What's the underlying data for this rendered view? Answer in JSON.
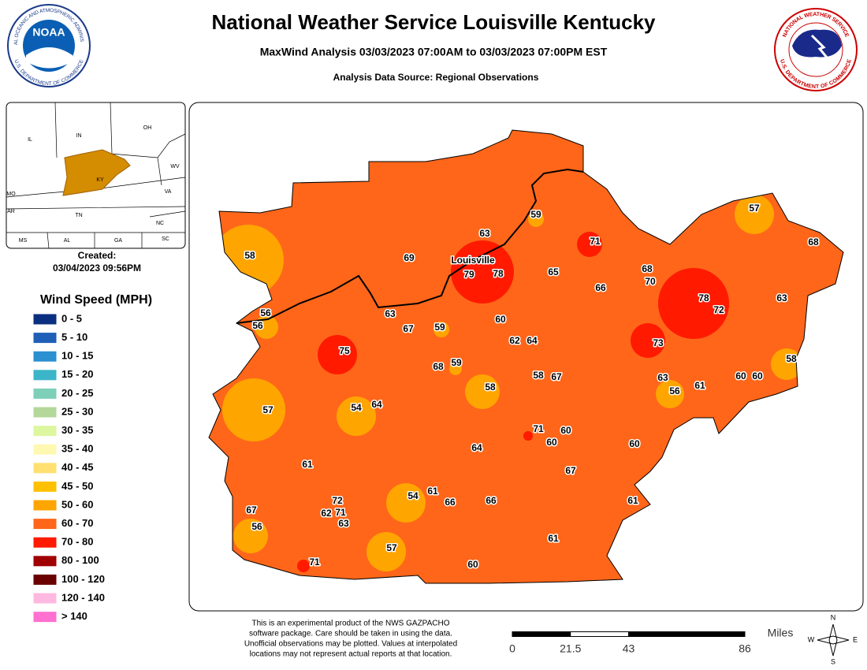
{
  "header": {
    "title": "National Weather Service Louisville Kentucky",
    "subtitle": "MaxWind Analysis 03/03/2023 07:00AM to 03/03/2023 07:00PM EST",
    "source": "Analysis Data Source: Regional Observations"
  },
  "logos": {
    "noaa_ring_top": "NATIONAL OCEANIC AND ATMOSPHERIC ADMINISTRATION",
    "noaa_ring_bottom": "U.S. DEPARTMENT OF COMMERCE",
    "noaa_center": "NOAA",
    "nws_ring_top": "NATIONAL WEATHER SERVICE",
    "nws_ring_bottom": "U.S. DEPARTMENT OF COMMERCE"
  },
  "inset": {
    "labels": [
      "IL",
      "IN",
      "OH",
      "WV",
      "VA",
      "KY",
      "TN",
      "NC",
      "MO",
      "AR",
      "MS",
      "AL",
      "GA",
      "SC"
    ]
  },
  "created": {
    "label": "Created:",
    "timestamp": "03/04/2023 09:56PM"
  },
  "legend": {
    "title": "Wind Speed (MPH)",
    "items": [
      {
        "label": "0 - 5",
        "color": "#0b2f80"
      },
      {
        "label": "5 - 10",
        "color": "#1f5fb8"
      },
      {
        "label": "10 - 15",
        "color": "#2b8fd0"
      },
      {
        "label": "15 - 20",
        "color": "#3bb5c8"
      },
      {
        "label": "20 - 25",
        "color": "#7dcfb8"
      },
      {
        "label": "25 - 30",
        "color": "#b3d89a"
      },
      {
        "label": "30 - 35",
        "color": "#ddf7a0"
      },
      {
        "label": "35 - 40",
        "color": "#fff8b0"
      },
      {
        "label": "40 - 45",
        "color": "#ffe070"
      },
      {
        "label": "45 - 50",
        "color": "#ffc000"
      },
      {
        "label": "50 - 60",
        "color": "#ffa500"
      },
      {
        "label": "60 - 70",
        "color": "#ff661a"
      },
      {
        "label": "70 - 80",
        "color": "#ff1a00"
      },
      {
        "label": "80 - 100",
        "color": "#a00000"
      },
      {
        "label": "100 - 120",
        "color": "#6a0000"
      },
      {
        "label": "120 - 140",
        "color": "#ffb8e0"
      },
      {
        "label": "> 140",
        "color": "#ff70d0"
      }
    ]
  },
  "map": {
    "city": "Louisville",
    "stations": [
      58,
      69,
      63,
      59,
      71,
      57,
      68,
      79,
      78,
      65,
      68,
      70,
      66,
      78,
      72,
      63,
      56,
      56,
      63,
      67,
      59,
      60,
      62,
      64,
      73,
      75,
      68,
      59,
      58,
      58,
      67,
      63,
      56,
      61,
      60,
      60,
      58,
      57,
      54,
      64,
      71,
      60,
      60,
      64,
      60,
      61,
      67,
      54,
      61,
      72,
      66,
      66,
      61,
      67,
      62,
      71,
      63,
      56,
      61,
      57,
      71,
      60
    ]
  },
  "footer": {
    "disclaimer": [
      "This is an experimental product of the NWS GAZPACHO",
      "software package. Care should be taken in using the data.",
      "Unofficial observations may be plotted. Values at interpolated",
      "locations may not represent actual reports at that location."
    ],
    "scale": {
      "unit": "Miles",
      "ticks": [
        0,
        21.5,
        43,
        86
      ]
    },
    "compass": [
      "N",
      "E",
      "S",
      "W"
    ]
  }
}
